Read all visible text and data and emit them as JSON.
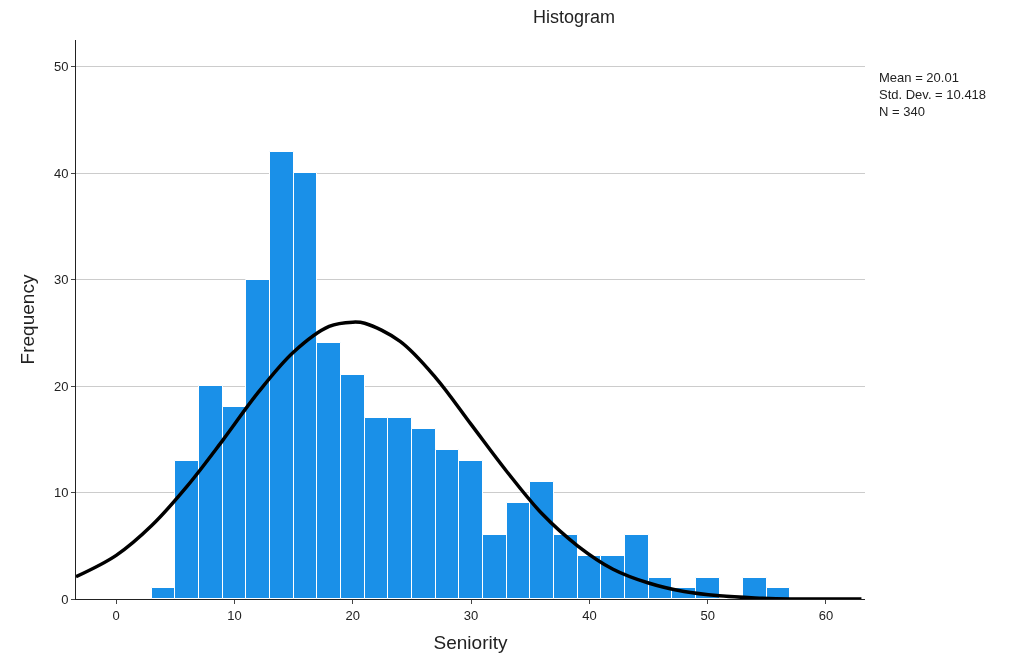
{
  "chart_data": {
    "type": "histogram",
    "title": "Histogram",
    "xlabel": "Seniority",
    "ylabel": "Frequency",
    "series": [
      {
        "color": "#1a90e8",
        "bins": [
          3,
          5,
          7,
          9,
          11,
          13,
          15,
          17,
          19,
          21,
          23,
          25,
          27,
          29,
          31,
          33,
          35,
          37,
          39,
          41,
          43,
          45,
          47,
          49,
          51,
          53,
          55,
          57
        ],
        "values": [
          1,
          13,
          20,
          18,
          30,
          42,
          40,
          24,
          21,
          17,
          17,
          16,
          14,
          13,
          6,
          9,
          11,
          6,
          4,
          4,
          6,
          2,
          1,
          2,
          0,
          2,
          1
        ]
      },
      {
        "type": "line",
        "color": "#000000",
        "x": [
          -3.4,
          0,
          3,
          6,
          9,
          12,
          15,
          18,
          20,
          21,
          24,
          27,
          30,
          33,
          36,
          39,
          42,
          45,
          48,
          51,
          54,
          57,
          60,
          63
        ],
        "values": [
          2.1,
          4.1,
          6.9,
          10.6,
          14.9,
          19.4,
          23.2,
          25.6,
          26.0,
          25.9,
          24.2,
          20.8,
          16.4,
          12.0,
          8.0,
          5.0,
          2.8,
          1.5,
          0.7,
          0.3,
          0.1,
          0,
          0,
          0
        ]
      }
    ],
    "xlim": [
      -3.4,
      63.3
    ],
    "ylim": [
      0,
      52.5
    ],
    "xticks": [
      0,
      10,
      20,
      30,
      40,
      50,
      60
    ],
    "yticks": [
      0,
      10,
      20,
      30,
      40,
      50
    ],
    "grid": "y",
    "annotations": [
      "Mean = 20.01\nStd. Dev. = 10.418\nN = 340"
    ]
  }
}
